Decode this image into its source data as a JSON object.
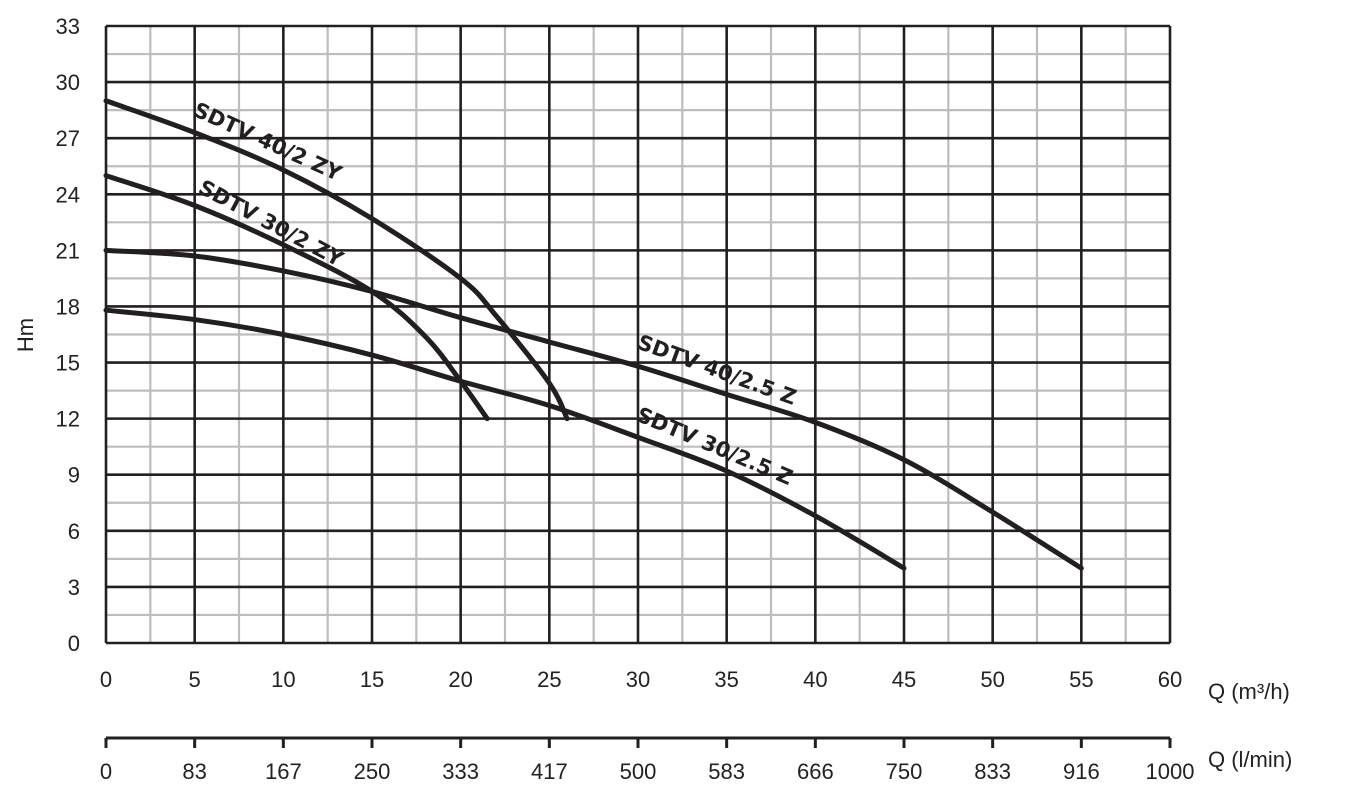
{
  "chart_data": {
    "type": "line",
    "ylabel": "Hm",
    "xlabel": "Q (m³/h)",
    "x2label": "Q (l/min)",
    "xlim": [
      0,
      60
    ],
    "ylim": [
      0,
      33
    ],
    "x_ticks": [
      "0",
      "5",
      "10",
      "15",
      "20",
      "25",
      "30",
      "35",
      "40",
      "45",
      "50",
      "55",
      "60"
    ],
    "y_ticks": [
      "0",
      "3",
      "6",
      "9",
      "12",
      "15",
      "18",
      "21",
      "24",
      "27",
      "30",
      "33"
    ],
    "x2_ticks": [
      "0",
      "83",
      "167",
      "250",
      "333",
      "417",
      "500",
      "583",
      "666",
      "750",
      "833",
      "916",
      "1000"
    ],
    "grid": "on",
    "series": [
      {
        "name": "SDTV 40/2 ZY",
        "points": [
          [
            0,
            29
          ],
          [
            5,
            27.3
          ],
          [
            10,
            25.3
          ],
          [
            15,
            22.7
          ],
          [
            20,
            19.5
          ],
          [
            22,
            17.5
          ],
          [
            25,
            13.9
          ],
          [
            26,
            12
          ]
        ]
      },
      {
        "name": "SDTV 30/2 ZY",
        "points": [
          [
            0,
            25
          ],
          [
            5,
            23.4
          ],
          [
            10,
            21.3
          ],
          [
            15,
            18.8
          ],
          [
            18,
            16.4
          ],
          [
            20,
            14
          ],
          [
            21.5,
            12
          ]
        ]
      },
      {
        "name": "SDTV 40/2.5 Z",
        "points": [
          [
            0,
            21
          ],
          [
            5,
            20.7
          ],
          [
            10,
            19.9
          ],
          [
            15,
            18.8
          ],
          [
            20,
            17.4
          ],
          [
            25,
            16.1
          ],
          [
            30,
            14.8
          ],
          [
            35,
            13.3
          ],
          [
            40,
            11.8
          ],
          [
            45,
            9.8
          ],
          [
            50,
            7
          ],
          [
            55,
            4
          ]
        ]
      },
      {
        "name": "SDTV 30/2.5 Z",
        "points": [
          [
            0,
            17.8
          ],
          [
            5,
            17.3
          ],
          [
            10,
            16.5
          ],
          [
            15,
            15.4
          ],
          [
            20,
            14
          ],
          [
            25,
            12.7
          ],
          [
            30,
            11
          ],
          [
            35,
            9.2
          ],
          [
            40,
            6.8
          ],
          [
            45,
            4
          ]
        ]
      }
    ]
  }
}
